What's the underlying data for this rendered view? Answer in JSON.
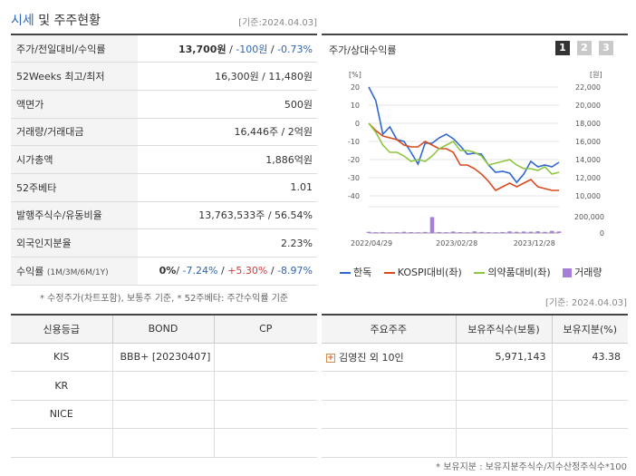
{
  "header": {
    "title_accent": "시세",
    "title_rest": " 및 주주현황",
    "asof": "[기준:2024.04.03]"
  },
  "price_table": {
    "rows": [
      {
        "label": "주가/전일대비/수익률"
      },
      {
        "label": "52Weeks 최고/최저",
        "value": "16,300원 / 11,480원"
      },
      {
        "label": "액면가",
        "value": "500원"
      },
      {
        "label": "거래량/거래대금",
        "value": "16,446주 / 2억원"
      },
      {
        "label": "시가총액",
        "value": "1,886억원"
      },
      {
        "label": "52주베타",
        "value": "1.01"
      },
      {
        "label": "발행주식수/유동비율",
        "value": "13,763,533주 / 56.54%"
      },
      {
        "label": "외국인지분율",
        "value": "2.23%"
      },
      {
        "label": "수익률",
        "label_sub": "(1M/3M/6M/1Y)"
      }
    ],
    "price": "13,700원",
    "sep1": " / ",
    "change": "-100원",
    "sep2": " / ",
    "change_pct": "-0.73%",
    "ret_1m": "0%",
    "ret_3m": "-7.24%",
    "ret_6m": "+5.30%",
    "ret_1y": "-8.97%",
    "slash": "/"
  },
  "left_note": "* 수정주가(차트포함), 보통주 기준, * 52주베타: 주간수익률 기준",
  "chart_panel": {
    "title": "주가/상대수익률",
    "pages": [
      "1",
      "2",
      "3"
    ],
    "legend": [
      {
        "label": "한독",
        "color": "#2f67d1",
        "type": "line"
      },
      {
        "label": "KOSPI대비(좌)",
        "color": "#d94a1e",
        "type": "line"
      },
      {
        "label": "의약품대비(좌)",
        "color": "#8ec63f",
        "type": "line"
      },
      {
        "label": "거래량",
        "color": "#a57fd8",
        "type": "box"
      }
    ]
  },
  "chart_data": {
    "type": "line",
    "left_unit": "[%]",
    "right_unit": "[원]",
    "left_ticks": [
      "20",
      "10",
      "0",
      "-10",
      "-20",
      "-30",
      "-40"
    ],
    "right_ticks": [
      "22,000",
      "20,000",
      "18,000",
      "16,000",
      "14,000",
      "12,000",
      "10,000"
    ],
    "volume_ticks": [
      "200,000",
      "0"
    ],
    "x_labels": [
      "2022/04/29",
      "2023/02/28",
      "2023/12/28"
    ],
    "left_ylim": [
      -40,
      20
    ],
    "right_ylim": [
      10000,
      22000
    ],
    "volume_ylim": [
      0,
      200000
    ],
    "series": [
      {
        "name": "한독",
        "axis": "right",
        "color": "#2f67d1",
        "values": [
          22000,
          20500,
          16800,
          17600,
          16200,
          16000,
          14800,
          13500,
          15800,
          15800,
          16400,
          16800,
          16300,
          15500,
          14600,
          14700,
          14600,
          13400,
          12600,
          12700,
          12500,
          11480,
          12400,
          13800,
          13200,
          13400,
          13200,
          13700
        ]
      },
      {
        "name": "KOSPI대비(좌)",
        "axis": "left",
        "color": "#d94a1e",
        "values": [
          0,
          -4,
          -7,
          -8,
          -9,
          -12,
          -13,
          -13,
          -10,
          -12,
          -14,
          -14,
          -16,
          -23,
          -23,
          -25,
          -28,
          -32,
          -37,
          -35,
          -33,
          -35,
          -33,
          -31,
          -35,
          -36,
          -37,
          -37
        ]
      },
      {
        "name": "의약품대비(좌)",
        "axis": "left",
        "color": "#8ec63f",
        "values": [
          0,
          -5,
          -12,
          -16,
          -16,
          -18,
          -21,
          -20,
          -21,
          -18,
          -14,
          -12,
          -10,
          -15,
          -15,
          -16,
          -18,
          -23,
          -22,
          -21,
          -20,
          -23,
          -25,
          -25,
          -26,
          -24,
          -28,
          -27
        ]
      },
      {
        "name": "거래량",
        "axis": "volume",
        "color": "#a57fd8",
        "values": [
          15000,
          10000,
          12000,
          8000,
          10000,
          15000,
          11000,
          9000,
          13000,
          195000,
          12000,
          10000,
          18000,
          11000,
          9000,
          20000,
          13000,
          10000,
          9000,
          12000,
          20000,
          15000,
          18000,
          16000,
          21000,
          14000,
          26000,
          19000
        ]
      }
    ]
  },
  "asof2": "[기준: 2024.04.03]",
  "credit_table": {
    "headers": [
      "신용등급",
      "BOND",
      "CP"
    ],
    "rows": [
      {
        "agency": "KIS",
        "bond": "BBB+ [20230407]",
        "cp": ""
      },
      {
        "agency": "KR",
        "bond": "",
        "cp": ""
      },
      {
        "agency": "NICE",
        "bond": "",
        "cp": ""
      },
      {
        "agency": "",
        "bond": "",
        "cp": ""
      }
    ]
  },
  "holders_table": {
    "headers": [
      "주요주주",
      "보유주식수(보통)",
      "보유지분(%)"
    ],
    "rows": [
      {
        "name": "김영진 외 10인",
        "shares": "5,971,143",
        "pct": "43.38",
        "expand": "+"
      },
      {
        "name": "",
        "shares": "",
        "pct": ""
      },
      {
        "name": "",
        "shares": "",
        "pct": ""
      },
      {
        "name": "",
        "shares": "",
        "pct": ""
      }
    ]
  },
  "right_note": "* 보유지분 : 보유지분주식수/지수산정주식수*100"
}
